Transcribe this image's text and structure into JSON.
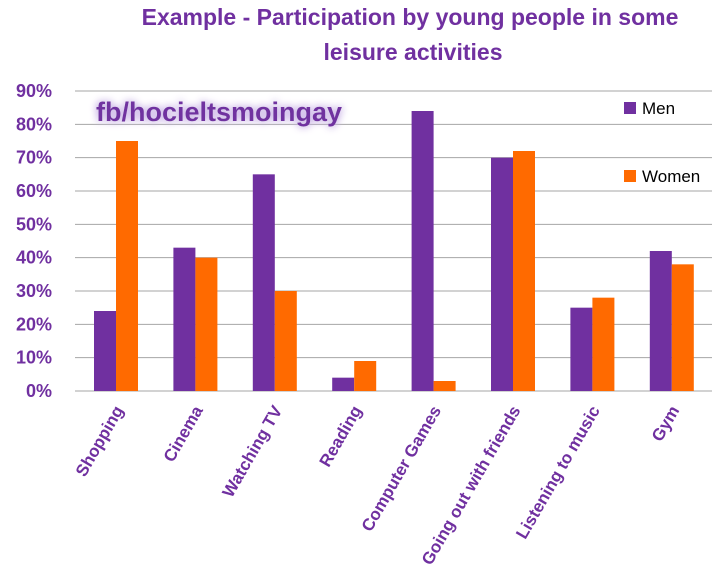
{
  "chart_data": {
    "type": "bar",
    "title_lines": [
      "Example - Participation by young people in some",
      "leisure activities"
    ],
    "categories": [
      "Shopping",
      "Cinema",
      "Watching TV",
      "Reading",
      "Computer Games",
      "Going out with friends",
      "Listening to music",
      "Gym"
    ],
    "series": [
      {
        "name": "Men",
        "color": "#7030a0",
        "values": [
          24,
          43,
          65,
          4,
          84,
          70,
          25,
          42
        ]
      },
      {
        "name": "Women",
        "color": "#ff6a00",
        "values": [
          75,
          40,
          30,
          9,
          3,
          72,
          28,
          38
        ]
      }
    ],
    "ylim": [
      0,
      90
    ],
    "yticks": [
      0,
      10,
      20,
      30,
      40,
      50,
      60,
      70,
      80,
      90
    ],
    "ytick_labels": [
      "0%",
      "10%",
      "20%",
      "30%",
      "40%",
      "50%",
      "60%",
      "70%",
      "80%",
      "90%"
    ],
    "grid": true,
    "legend_position": "right"
  },
  "watermark": "fb/hocieltsmoingay",
  "colors": {
    "text": "#7030a0",
    "grid": "#a6a6a6"
  }
}
